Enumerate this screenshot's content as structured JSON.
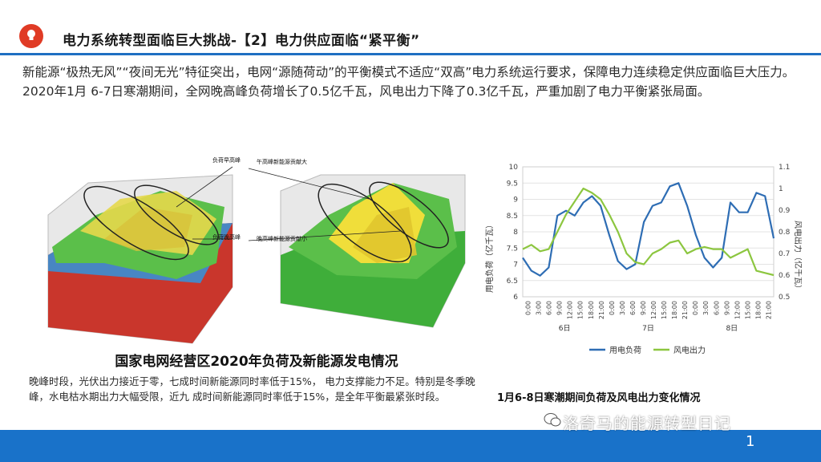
{
  "header": {
    "title": "电力系统转型面临巨大挑战-【2】电力供应面临“紧平衡”"
  },
  "lead_text": "新能源“极热无风”“夜间无光”特征突出，电网“源随荷动”的平衡模式不适应“双高”电力系统运行要求，保障电力连续稳定供应面临巨大压力。2020年1月 6-7日寒潮期间，全网晚高峰负荷增长了0.5亿千瓦，风电出力下降了0.3亿千瓦，严重加剧了电力平衡紧张局面。",
  "figure_left": {
    "labels": [
      "负荷早高峰",
      "午高峰新能源贡献大",
      "负荷晚高峰",
      "晚高峰新能源贡献小"
    ],
    "caption": "国家电网经营区2020年负荷及新能源发电情况"
  },
  "note_text": "晚峰时段，光伏出力接近于零，七成时间新能源同时率低于15%，  电力支撑能力不足。特别是冬季晚峰，水电枯水期出力大幅受限，近九  成时间新能源同时率低于15%，是全年平衡最紧张时段。",
  "chart_caption": "1月6-8日寒潮期间负荷及风电出力变化情况",
  "watermark": "洛奇马的能源转型日记",
  "page_number": "1",
  "colors": {
    "accent": "#1972c9",
    "logo": "#e03b25",
    "load": "#2e6db4",
    "wind": "#8cc63f"
  },
  "chart_data": {
    "type": "line",
    "ylabel": "用电负荷（亿千瓦）",
    "y2label": "风电出力（亿千瓦）",
    "ylim": [
      6,
      10
    ],
    "y2lim": [
      0.5,
      1.1
    ],
    "yticks": [
      "6",
      "6.5",
      "7",
      "7.5",
      "8",
      "8.5",
      "9",
      "9.5",
      "10"
    ],
    "y2ticks": [
      "0.5",
      "0.6",
      "0.7",
      "0.8",
      "0.9",
      "1",
      "1.1"
    ],
    "x_tick_labels": [
      "0:00",
      "3:00",
      "6:00",
      "9:00",
      "12:00",
      "15:00",
      "18:00",
      "21:00",
      "0:00",
      "3:00",
      "6:00",
      "9:00",
      "12:00",
      "15:00",
      "18:00",
      "21:00",
      "0:00",
      "3:00",
      "6:00",
      "9:00",
      "12:00",
      "15:00",
      "18:00",
      "21:00"
    ],
    "day_labels": [
      "6日",
      "7日",
      "8日"
    ],
    "series": [
      {
        "name": "用电负荷",
        "axis": "left",
        "values": [
          7.2,
          6.8,
          6.65,
          6.9,
          8.5,
          8.65,
          8.5,
          8.9,
          9.1,
          8.8,
          7.9,
          7.1,
          6.85,
          7.0,
          8.3,
          8.8,
          8.9,
          9.4,
          9.5,
          8.8,
          7.9,
          7.2,
          6.9,
          7.2,
          8.9,
          8.6,
          8.6,
          9.2,
          9.1,
          7.8
        ]
      },
      {
        "name": "风电出力",
        "axis": "right",
        "values": [
          0.72,
          0.74,
          0.71,
          0.72,
          0.8,
          0.88,
          0.94,
          1.0,
          0.98,
          0.95,
          0.88,
          0.8,
          0.7,
          0.66,
          0.65,
          0.7,
          0.72,
          0.75,
          0.76,
          0.7,
          0.72,
          0.73,
          0.72,
          0.72,
          0.68,
          0.7,
          0.72,
          0.62,
          0.61,
          0.6
        ]
      }
    ],
    "legend": "bottom",
    "grid": true
  }
}
